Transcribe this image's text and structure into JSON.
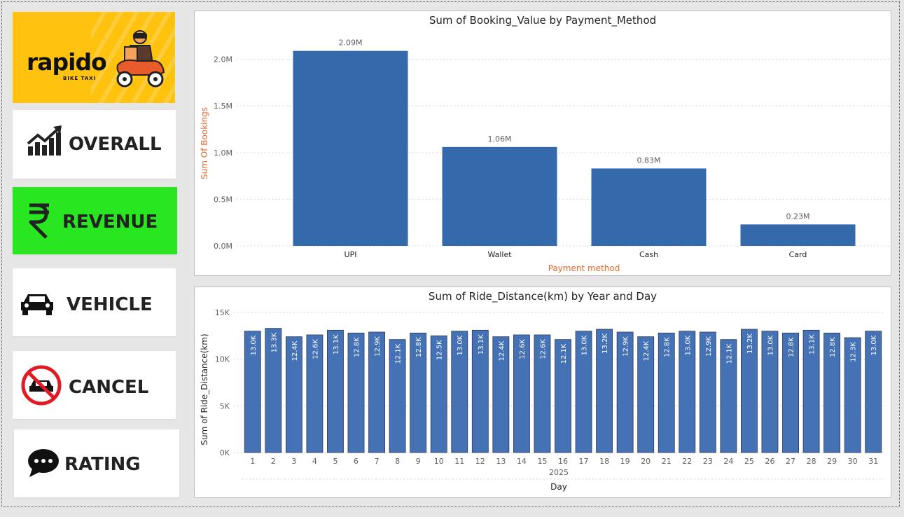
{
  "logo": {
    "brand": "rapido",
    "tagline": "BIKE TAXI",
    "bg_color": "#ffc20e"
  },
  "nav": {
    "items": [
      {
        "label": "OVERALL",
        "icon": "trending-chart-icon"
      },
      {
        "label": "REVENUE",
        "icon": "rupee-icon",
        "active": true,
        "active_color": "#28e620"
      },
      {
        "label": "VEHICLE",
        "icon": "car-icon"
      },
      {
        "label": "CANCEL",
        "icon": "no-car-icon"
      },
      {
        "label": "RATING",
        "icon": "chat-bubble-icon"
      }
    ]
  },
  "chart_data": [
    {
      "type": "bar",
      "title": "Sum of Booking_Value by Payment_Method",
      "xlabel": "Payment method",
      "ylabel": "Sum Of Bookings",
      "categories": [
        "UPI",
        "Wallet",
        "Cash",
        "Card"
      ],
      "values": [
        2.09,
        1.06,
        0.83,
        0.23
      ],
      "data_labels": [
        "2.09M",
        "1.06M",
        "0.83M",
        "0.23M"
      ],
      "ylim": [
        0,
        2.2
      ],
      "yticks": [
        0,
        0.5,
        1.0,
        1.5,
        2.0
      ],
      "ytick_labels": [
        "0.0M",
        "0.5M",
        "1.0M",
        "1.5M",
        "2.0M"
      ],
      "bar_color": "#346aac",
      "axis_title_color": "#e8692a",
      "grid": true
    },
    {
      "type": "bar",
      "title": "Sum of Ride_Distance(km) by Year and Day",
      "xlabel": "Day",
      "ylabel": "Sum of Ride_Distance(km)",
      "x_group_label": "2025",
      "categories": [
        "1",
        "2",
        "3",
        "4",
        "5",
        "6",
        "7",
        "8",
        "9",
        "10",
        "11",
        "12",
        "13",
        "14",
        "15",
        "16",
        "17",
        "18",
        "19",
        "20",
        "21",
        "22",
        "23",
        "24",
        "25",
        "26",
        "27",
        "28",
        "29",
        "30",
        "31"
      ],
      "values": [
        13.0,
        13.3,
        12.4,
        12.6,
        13.1,
        12.8,
        12.9,
        12.1,
        12.8,
        12.5,
        13.0,
        13.1,
        12.4,
        12.6,
        12.6,
        12.1,
        13.0,
        13.2,
        12.9,
        12.4,
        12.8,
        13.0,
        12.9,
        12.1,
        13.2,
        13.0,
        12.8,
        13.1,
        12.8,
        12.3,
        13.0
      ],
      "data_labels": [
        "13.0K",
        "13.3K",
        "12.4K",
        "12.6K",
        "13.1K",
        "12.8K",
        "12.9K",
        "12.1K",
        "12.8K",
        "12.5K",
        "13.0K",
        "13.1K",
        "12.4K",
        "12.6K",
        "12.6K",
        "12.1K",
        "13.0K",
        "13.2K",
        "12.9K",
        "12.4K",
        "12.8K",
        "13.0K",
        "12.9K",
        "12.1K",
        "13.2K",
        "13.0K",
        "12.8K",
        "13.1K",
        "12.8K",
        "12.3K",
        "13.0K"
      ],
      "ylim": [
        0,
        15
      ],
      "yticks": [
        0,
        5,
        10,
        15
      ],
      "ytick_labels": [
        "0K",
        "5K",
        "10K",
        "15K"
      ],
      "bar_color": "#4472b4",
      "grid": true
    }
  ]
}
